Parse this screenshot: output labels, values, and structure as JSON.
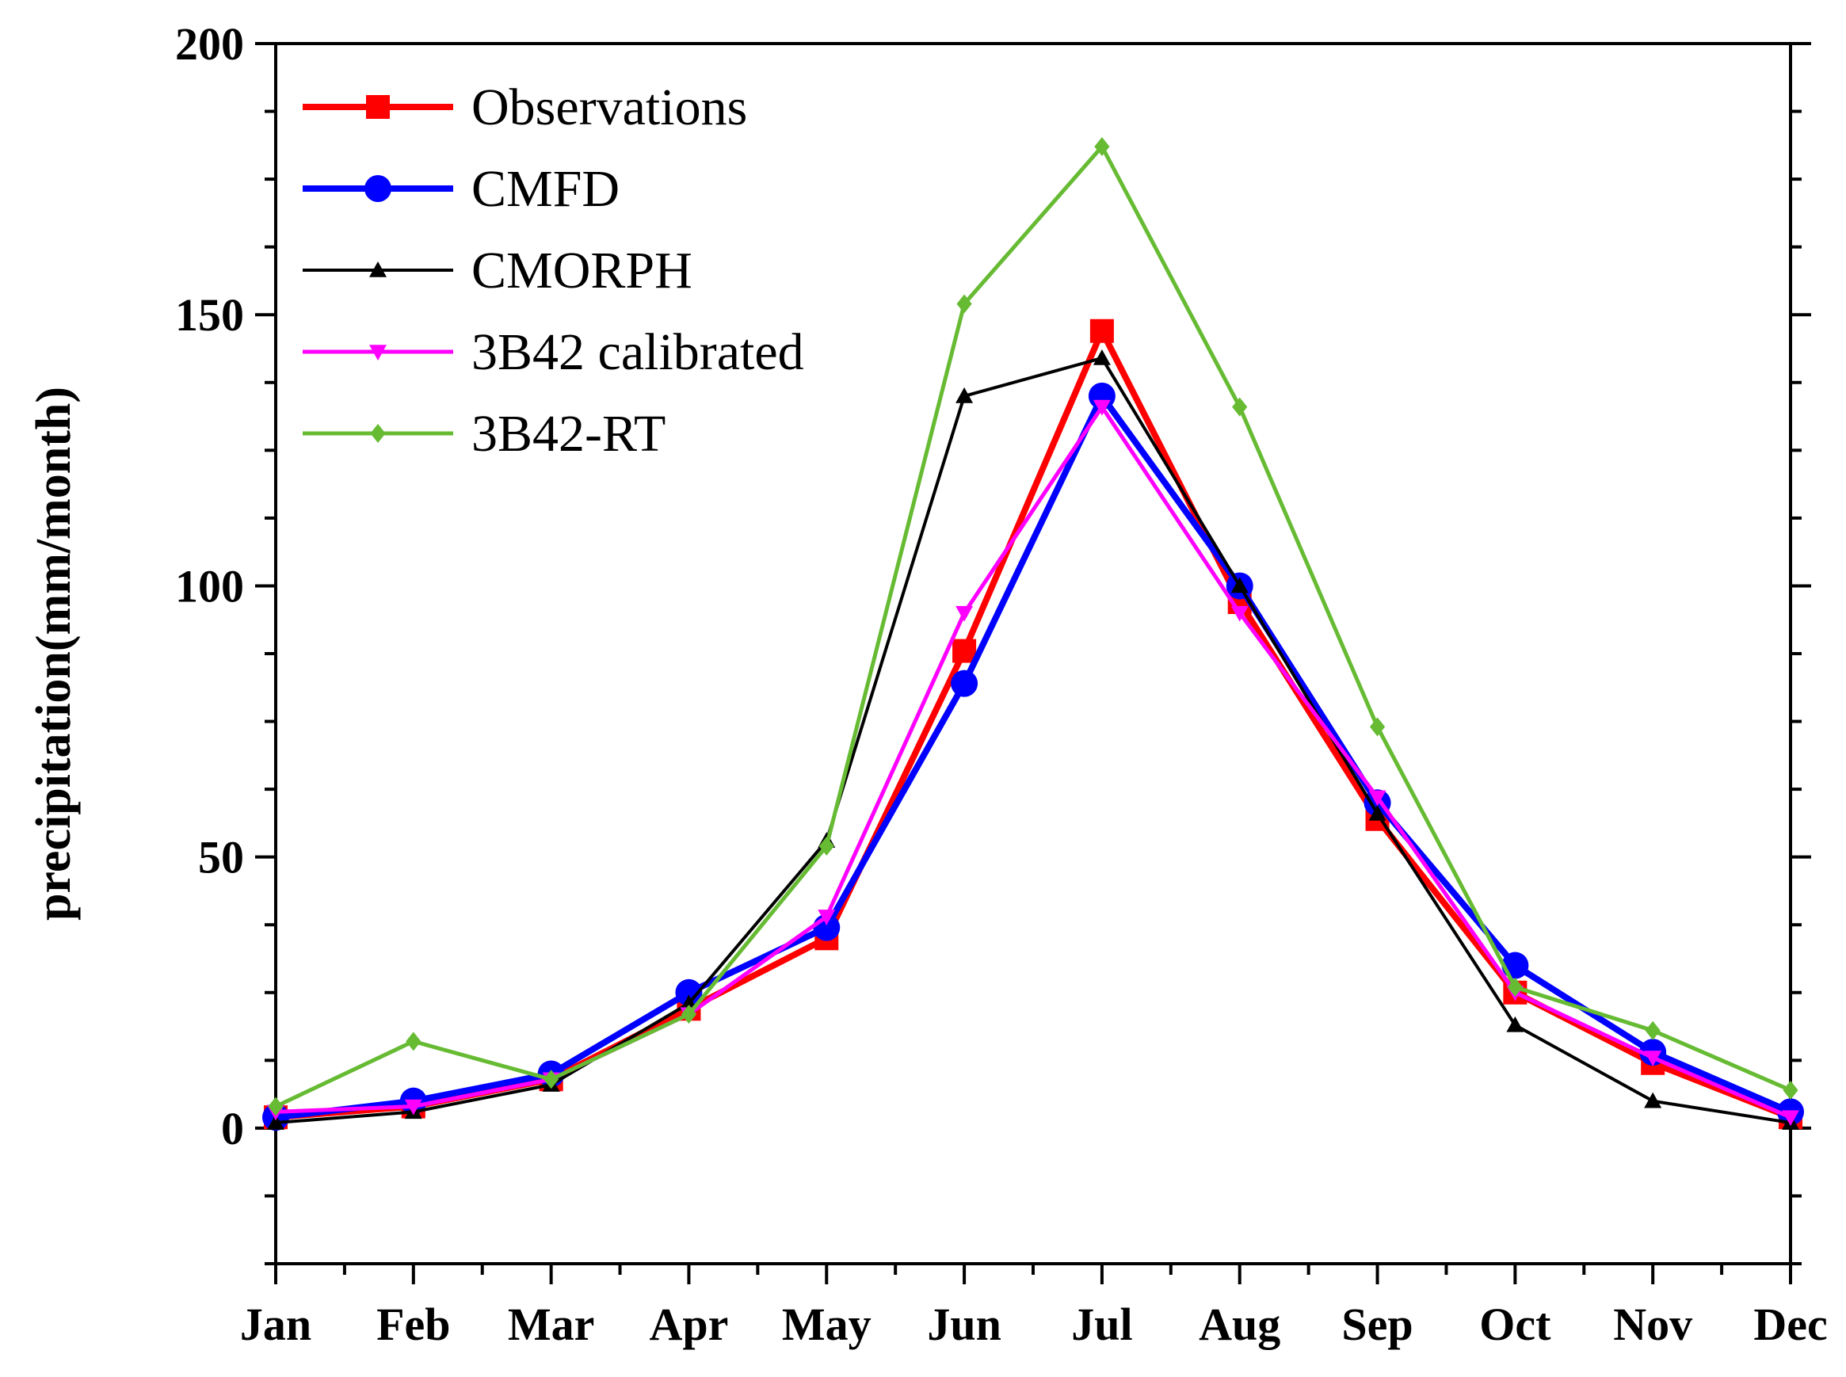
{
  "chart_data": {
    "type": "line",
    "title": "",
    "xlabel": "",
    "ylabel": "precipitation(mm/month)",
    "categories": [
      "Jan",
      "Feb",
      "Mar",
      "Apr",
      "May",
      "Jun",
      "Jul",
      "Aug",
      "Sep",
      "Oct",
      "Nov",
      "Dec"
    ],
    "ylim": [
      -25,
      200
    ],
    "yticks": [
      0,
      50,
      100,
      150,
      200
    ],
    "legend_position": "top-left",
    "series": [
      {
        "name": "Observations",
        "color": "#ff0000",
        "marker": "square",
        "values": [
          2,
          4,
          9,
          22,
          35,
          88,
          147,
          97,
          57,
          25,
          12,
          2
        ]
      },
      {
        "name": "CMFD",
        "color": "#0000ff",
        "marker": "circle",
        "values": [
          2,
          5,
          10,
          25,
          37,
          82,
          135,
          100,
          60,
          30,
          14,
          3
        ]
      },
      {
        "name": "CMORPH",
        "color": "#000000",
        "marker": "triangle-up",
        "values": [
          1,
          3,
          8,
          23,
          53,
          135,
          142,
          100,
          58,
          19,
          5,
          1
        ]
      },
      {
        "name": "3B42 calibrated",
        "color": "#ff00ff",
        "marker": "triangle-down",
        "values": [
          3,
          4,
          9,
          21,
          39,
          95,
          133,
          95,
          61,
          25,
          13,
          2
        ]
      },
      {
        "name": "3B42-RT",
        "color": "#66bb33",
        "marker": "diamond",
        "values": [
          4,
          16,
          9,
          21,
          52,
          152,
          181,
          133,
          74,
          26,
          18,
          7
        ]
      }
    ]
  }
}
